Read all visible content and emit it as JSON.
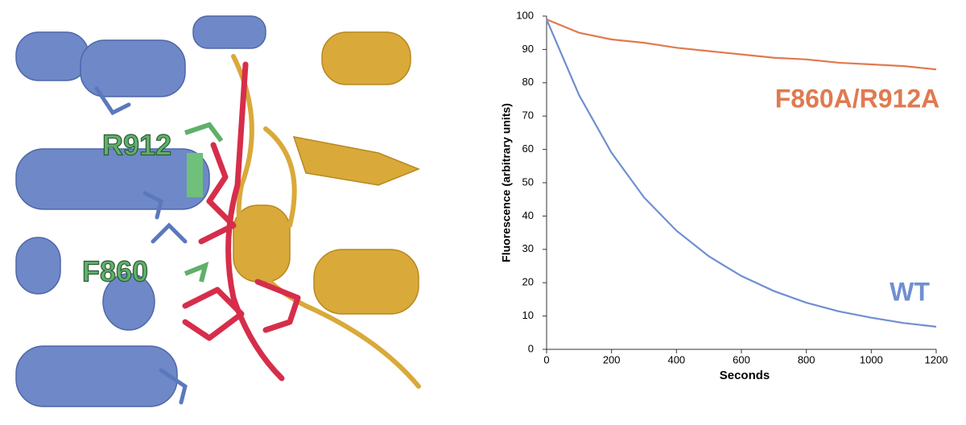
{
  "structure": {
    "labels": [
      "R912",
      "F860"
    ]
  },
  "chart_data": {
    "type": "line",
    "x_label": "Seconds",
    "y_label": "Fluorescence (arbitrary units)",
    "x": [
      0,
      100,
      200,
      300,
      400,
      500,
      600,
      700,
      800,
      900,
      1000,
      1100,
      1200
    ],
    "series": [
      {
        "name": "F860A/R912A",
        "color": "#e07a50",
        "values": [
          99,
          95,
          93,
          92,
          90.5,
          89.5,
          88.5,
          87.5,
          87,
          86,
          85.5,
          85,
          84
        ]
      },
      {
        "name": "WT",
        "color": "#6f8fd0",
        "values": [
          99,
          76.3,
          59,
          45.6,
          35.6,
          27.9,
          22,
          17.5,
          14,
          11.4,
          9.5,
          7.9,
          6.8
        ]
      }
    ],
    "xlim": [
      0,
      1200
    ],
    "xticks": [
      0,
      200,
      400,
      600,
      800,
      1000,
      1200
    ],
    "ylim": [
      0,
      100
    ],
    "yticks": [
      0,
      10,
      20,
      30,
      40,
      50,
      60,
      70,
      80,
      90,
      100
    ],
    "grid": false
  }
}
